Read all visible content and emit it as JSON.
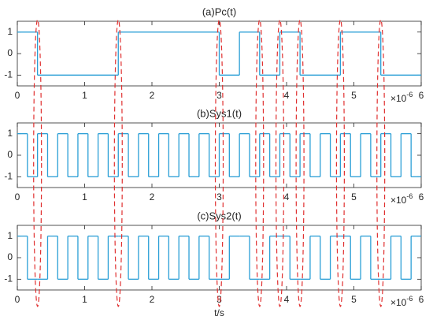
{
  "chart_data": [
    {
      "type": "line",
      "title": "(a)Pc(t)",
      "step": "post",
      "x": [
        0,
        0.3,
        1.5,
        3.0,
        3.3,
        3.6,
        3.9,
        4.2,
        4.8,
        5.4
      ],
      "values": [
        1,
        -1,
        1,
        -1,
        1,
        -1,
        1,
        -1,
        1,
        -1
      ],
      "color": "#2a9fd6",
      "xlim": [
        0,
        6
      ],
      "ylim": [
        -1.5,
        1.5
      ],
      "xticks": [
        0,
        1,
        2,
        3,
        4,
        5,
        6
      ],
      "yticks": [
        -1,
        0,
        1
      ],
      "x_multiplier": {
        "base": "×10",
        "exponent": "-6"
      }
    },
    {
      "type": "line",
      "title": "(b)Sys1(t)",
      "step": "post",
      "x": [
        0,
        0.15,
        0.3,
        0.45,
        0.6,
        0.75,
        0.9,
        1.05,
        1.2,
        1.35,
        1.5,
        1.65,
        1.8,
        1.95,
        2.1,
        2.25,
        2.4,
        2.55,
        2.7,
        2.85,
        3.0,
        3.15,
        3.3,
        3.45,
        3.6,
        3.75,
        3.9,
        4.05,
        4.2,
        4.35,
        4.5,
        4.65,
        4.8,
        4.95,
        5.1,
        5.25,
        5.4,
        5.55,
        5.7,
        5.85
      ],
      "values": [
        1,
        -1,
        1,
        -1,
        1,
        -1,
        1,
        -1,
        1,
        -1,
        1,
        -1,
        1,
        -1,
        1,
        -1,
        1,
        -1,
        1,
        -1,
        1,
        -1,
        1,
        -1,
        1,
        -1,
        1,
        -1,
        1,
        -1,
        1,
        -1,
        1,
        -1,
        1,
        -1,
        1,
        -1,
        1,
        -1
      ],
      "color": "#2a9fd6",
      "xlim": [
        0,
        6
      ],
      "ylim": [
        -1.5,
        1.5
      ],
      "xticks": [
        0,
        1,
        2,
        3,
        4,
        5,
        6
      ],
      "yticks": [
        -1,
        0,
        1
      ],
      "x_multiplier": {
        "base": "×10",
        "exponent": "-6"
      }
    },
    {
      "type": "line",
      "title": "(c)Sys2(t)",
      "step": "post",
      "xlabel": "t/s",
      "x": [
        0,
        0.15,
        0.3,
        0.45,
        0.6,
        0.75,
        0.9,
        1.05,
        1.2,
        1.35,
        1.5,
        1.65,
        1.8,
        1.95,
        2.1,
        2.25,
        2.4,
        2.55,
        2.7,
        2.85,
        3.0,
        3.15,
        3.3,
        3.45,
        3.6,
        3.75,
        3.9,
        4.05,
        4.2,
        4.35,
        4.5,
        4.65,
        4.8,
        4.95,
        5.1,
        5.25,
        5.4,
        5.55,
        5.7,
        5.85
      ],
      "values": [
        1,
        -1,
        -1,
        1,
        -1,
        1,
        -1,
        1,
        -1,
        1,
        1,
        -1,
        1,
        -1,
        1,
        -1,
        1,
        -1,
        1,
        -1,
        -1,
        1,
        1,
        -1,
        -1,
        1,
        1,
        -1,
        -1,
        1,
        -1,
        1,
        1,
        -1,
        1,
        -1,
        -1,
        1,
        -1,
        1
      ],
      "color": "#2a9fd6",
      "xlim": [
        0,
        6
      ],
      "ylim": [
        -1.5,
        1.5
      ],
      "xticks": [
        0,
        1,
        2,
        3,
        4,
        5,
        6
      ],
      "yticks": [
        -1,
        0,
        1
      ],
      "x_multiplier": {
        "base": "×10",
        "exponent": "-6"
      }
    }
  ]
}
